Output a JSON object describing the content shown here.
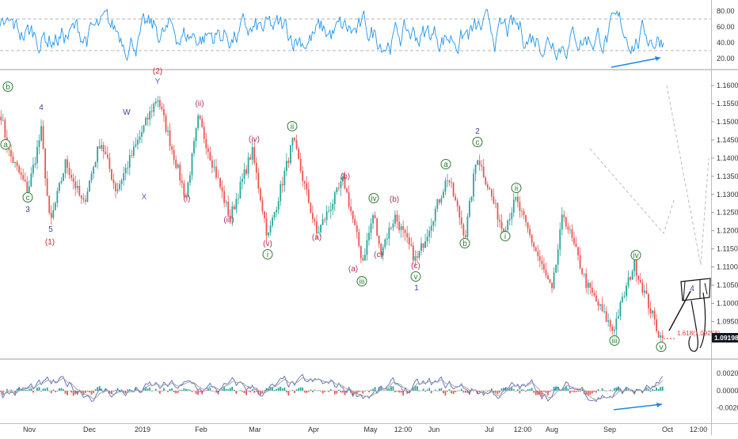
{
  "rsi_panel": {
    "ticks": [
      "80.00",
      "60.00",
      "40.00",
      "20.00"
    ],
    "tick_values": [
      80,
      60,
      40,
      20
    ],
    "range": [
      10,
      90
    ],
    "bands": [
      70,
      30
    ],
    "line_color": "#2196f3"
  },
  "price_panel": {
    "ticks": [
      "1.16000",
      "1.15500",
      "1.15000",
      "1.14500",
      "1.14000",
      "1.13500",
      "1.13000",
      "1.12500",
      "1.12000",
      "1.11500",
      "1.11000",
      "1.10500",
      "1.10000",
      "1.09500",
      "1.09000"
    ],
    "tick_values": [
      1.16,
      1.155,
      1.15,
      1.145,
      1.14,
      1.135,
      1.13,
      1.125,
      1.12,
      1.115,
      1.11,
      1.105,
      1.1,
      1.095,
      1.09
    ],
    "range": [
      1.0855,
      1.1635
    ],
    "current_price": "1.09198",
    "fib_label": "1.618(1.09258)",
    "up_color": "#26a69a",
    "down_color": "#ef5350"
  },
  "macd_panel": {
    "ticks": [
      "0.00200",
      "0.00000",
      "-0.00200"
    ],
    "tick_values": [
      0.002,
      0,
      -0.002
    ],
    "range": [
      -0.0035,
      0.0033
    ]
  },
  "time_axis": [
    {
      "label": "Nov"
    },
    {
      "label": "Dec"
    },
    {
      "label": "2019"
    },
    {
      "label": "Feb"
    },
    {
      "label": "Mar"
    },
    {
      "label": "Apr"
    },
    {
      "label": "May"
    },
    {
      "label": "12:00"
    },
    {
      "label": "Jun"
    },
    {
      "label": "Jul"
    },
    {
      "label": "12:00"
    },
    {
      "label": "Aug"
    },
    {
      "label": "Sep"
    },
    {
      "label": "Oct"
    },
    {
      "label": "12:00"
    }
  ],
  "wave_labels": [
    {
      "text": "b",
      "circled": true,
      "color": "#2e7d32"
    },
    {
      "text": "a",
      "circled": true,
      "color": "#2e7d32"
    },
    {
      "text": "c",
      "circled": true,
      "color": "#2e7d32"
    },
    {
      "text": "3",
      "circled": false,
      "color": "#3f3f9e"
    },
    {
      "text": "4",
      "circled": false,
      "color": "#3f3f9e"
    },
    {
      "text": "5",
      "circled": false,
      "color": "#3f3f9e"
    },
    {
      "text": "(1)",
      "circled": false,
      "color": "#c62828"
    },
    {
      "text": "W",
      "circled": false,
      "color": "#3f3f9e"
    },
    {
      "text": "X",
      "circled": false,
      "color": "#6a5acd"
    },
    {
      "text": "(2)",
      "circled": false,
      "color": "#c62828"
    },
    {
      "text": "Y",
      "circled": false,
      "color": "#6a5acd"
    },
    {
      "text": "(i)",
      "circled": false,
      "color": "#b03060"
    },
    {
      "text": "(ii)",
      "circled": false,
      "color": "#b03060"
    },
    {
      "text": "(iii)",
      "circled": false,
      "color": "#b03060"
    },
    {
      "text": "(iv)",
      "circled": false,
      "color": "#b03060"
    },
    {
      "text": "(v)",
      "circled": false,
      "color": "#b03060"
    },
    {
      "text": "i",
      "circled": true,
      "color": "#2e7d32"
    },
    {
      "text": "ii",
      "circled": true,
      "color": "#2e7d32"
    },
    {
      "text": "(a)",
      "circled": false,
      "color": "#b03060"
    },
    {
      "text": "(b)",
      "circled": false,
      "color": "#b03060"
    },
    {
      "text": "(c)",
      "circled": false,
      "color": "#b03060"
    },
    {
      "text": "iii",
      "circled": true,
      "color": "#2e7d32"
    },
    {
      "text": "iv",
      "circled": true,
      "color": "#2e7d32"
    },
    {
      "text": "(a)",
      "circled": false,
      "color": "#b03060"
    },
    {
      "text": "(b)",
      "circled": false,
      "color": "#b03060"
    },
    {
      "text": "(c)",
      "circled": false,
      "color": "#b03060"
    },
    {
      "text": "v",
      "circled": true,
      "color": "#2e7d32"
    },
    {
      "text": "1",
      "circled": false,
      "color": "#3f3f9e"
    },
    {
      "text": "a",
      "circled": true,
      "color": "#2e7d32"
    },
    {
      "text": "b",
      "circled": true,
      "color": "#2e7d32"
    },
    {
      "text": "2",
      "circled": false,
      "color": "#3f3f9e"
    },
    {
      "text": "c",
      "circled": true,
      "color": "#2e7d32"
    },
    {
      "text": "ii",
      "circled": true,
      "color": "#2e7d32"
    },
    {
      "text": "i",
      "circled": true,
      "color": "#2e7d32"
    },
    {
      "text": "iii",
      "circled": true,
      "color": "#2e7d32"
    },
    {
      "text": "iv",
      "circled": true,
      "color": "#2e7d32"
    },
    {
      "text": "v",
      "circled": true,
      "color": "#2e7d32"
    },
    {
      "text": "4",
      "circled": false,
      "color": "#3f3f9e"
    }
  ],
  "chart_data": {
    "type": "candlestick",
    "pivots": [
      {
        "date": "late Oct",
        "price": 1.152
      },
      {
        "date": "early Nov",
        "price": 1.142
      },
      {
        "date": "mid Nov",
        "price": 1.131
      },
      {
        "date": "mid Nov",
        "price": 1.1475
      },
      {
        "date": "late Nov",
        "price": 1.1215
      },
      {
        "date": "early Dec",
        "price": 1.139
      },
      {
        "date": "mid Dec",
        "price": 1.127
      },
      {
        "date": "late Dec",
        "price": 1.145
      },
      {
        "date": "early Jan",
        "price": 1.131
      },
      {
        "date": "10 Jan",
        "price": 1.157
      },
      {
        "date": "late Jan",
        "price": 1.129
      },
      {
        "date": "early Feb",
        "price": 1.151
      },
      {
        "date": "late Feb",
        "price": 1.1235
      },
      {
        "date": "early Mar",
        "price": 1.142
      },
      {
        "date": "mid Mar",
        "price": 1.118
      },
      {
        "date": "late Mar",
        "price": 1.145
      },
      {
        "date": "mid Apr",
        "price": 1.119
      },
      {
        "date": "late Apr",
        "price": 1.134
      },
      {
        "date": "early May",
        "price": 1.1115
      },
      {
        "date": "mid May",
        "price": 1.125
      },
      {
        "date": "mid May",
        "price": 1.114
      },
      {
        "date": "late May",
        "price": 1.124
      },
      {
        "date": "end May",
        "price": 1.1115
      },
      {
        "date": "early Jun",
        "price": 1.135
      },
      {
        "date": "mid Jun",
        "price": 1.1185
      },
      {
        "date": "late Jun",
        "price": 1.141
      },
      {
        "date": "early Jul",
        "price": 1.12
      },
      {
        "date": "mid Jul",
        "price": 1.1285
      },
      {
        "date": "end Jul",
        "price": 1.103
      },
      {
        "date": "early Aug",
        "price": 1.125
      },
      {
        "date": "mid Aug",
        "price": 1.105
      },
      {
        "date": "early Sep",
        "price": 1.0925
      },
      {
        "date": "mid Sep",
        "price": 1.111
      },
      {
        "date": "end Sep",
        "price": 1.0905
      },
      {
        "date": "30 Sep",
        "price": 1.092
      }
    ],
    "ylim": [
      1.0855,
      1.1635
    ]
  }
}
